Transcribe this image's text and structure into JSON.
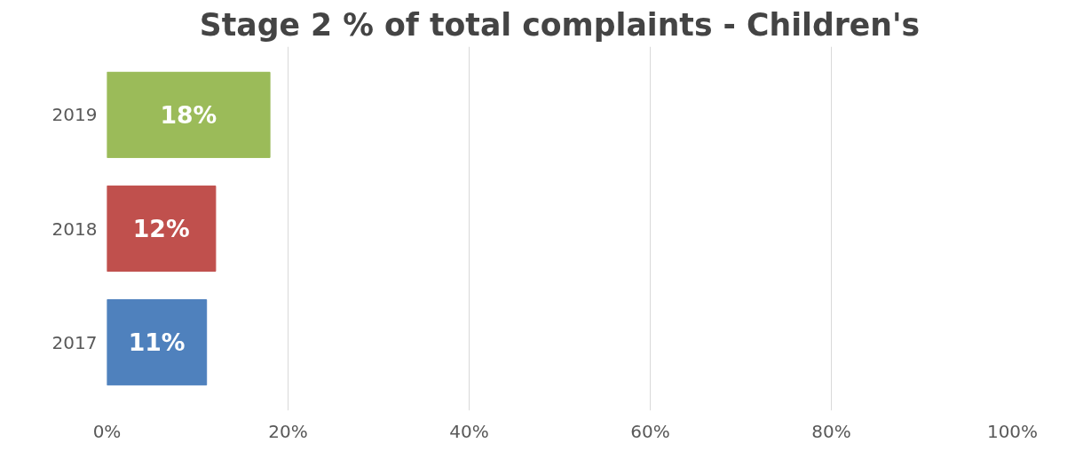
{
  "chart_data": {
    "type": "bar",
    "orientation": "horizontal",
    "title": "Stage 2 % of total complaints - Children's",
    "categories": [
      "2019",
      "2018",
      "2017"
    ],
    "values": [
      18,
      12,
      11
    ],
    "colors": [
      "#9bbb59",
      "#c0504d",
      "#4f81bd"
    ],
    "value_labels": [
      "18%",
      "12%",
      "11%"
    ],
    "xlim": [
      0,
      100
    ],
    "xticks": [
      {
        "value": 0,
        "label": "0%"
      },
      {
        "value": 20,
        "label": "20%"
      },
      {
        "value": 40,
        "label": "40%"
      },
      {
        "value": 60,
        "label": "60%"
      },
      {
        "value": 80,
        "label": "80%"
      },
      {
        "value": 100,
        "label": "100%"
      }
    ],
    "grid": "x"
  }
}
